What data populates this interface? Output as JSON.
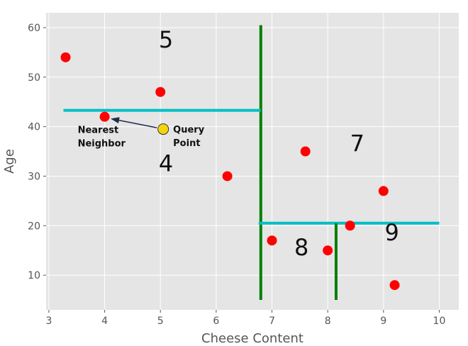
{
  "chart_data": {
    "type": "scatter",
    "title": "",
    "xlabel": "Cheese Content",
    "ylabel": "Age",
    "xlim": [
      2.95,
      10.35
    ],
    "ylim": [
      3,
      63
    ],
    "xticks": [
      3,
      4,
      5,
      6,
      7,
      8,
      9,
      10
    ],
    "yticks": [
      10,
      20,
      30,
      40,
      50,
      60
    ],
    "grid": true,
    "point_color": "#ff0000",
    "points": [
      {
        "x": 3.3,
        "y": 54
      },
      {
        "x": 5.0,
        "y": 47
      },
      {
        "x": 4.0,
        "y": 42
      },
      {
        "x": 6.2,
        "y": 30
      },
      {
        "x": 7.6,
        "y": 35
      },
      {
        "x": 9.0,
        "y": 27
      },
      {
        "x": 8.4,
        "y": 20
      },
      {
        "x": 7.0,
        "y": 17
      },
      {
        "x": 8.0,
        "y": 15
      },
      {
        "x": 9.2,
        "y": 8
      }
    ],
    "split_lines": [
      {
        "orientation": "vertical",
        "x": 6.8,
        "y_range": [
          5,
          60.5
        ],
        "color": "#008000"
      },
      {
        "orientation": "horizontal",
        "y": 43.3,
        "x_range": [
          3.3,
          6.8
        ],
        "color": "#00bfc4"
      },
      {
        "orientation": "horizontal",
        "y": 20.5,
        "x_range": [
          6.8,
          10.0
        ],
        "color": "#00bfc4"
      },
      {
        "orientation": "vertical",
        "x": 8.15,
        "y_range": [
          5,
          20.5
        ],
        "color": "#008000"
      }
    ],
    "regions": [
      {
        "label": "5",
        "x": 5.1,
        "y": 56
      },
      {
        "label": "4",
        "x": 5.1,
        "y": 31
      },
      {
        "label": "7",
        "x": 8.53,
        "y": 35
      },
      {
        "label": "8",
        "x": 7.53,
        "y": 14
      },
      {
        "label": "9",
        "x": 9.15,
        "y": 17
      }
    ],
    "query_point": {
      "x": 5.05,
      "y": 39.5,
      "color": "#f5d40f",
      "label_line1": "Query",
      "label_line2": "Point"
    },
    "nearest_neighbor_label": {
      "line1": "Nearest",
      "line2": "Neighbor"
    }
  }
}
